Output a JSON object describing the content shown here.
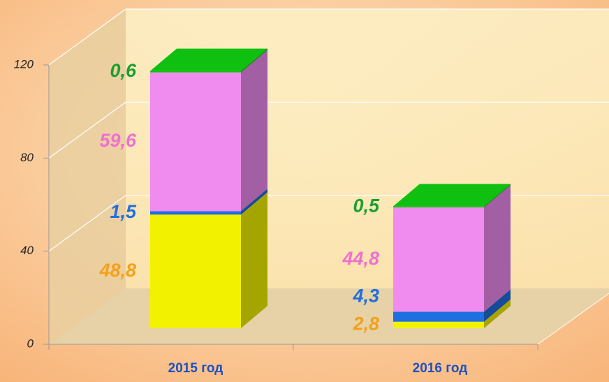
{
  "chart_data": {
    "type": "stacked-bar-3d",
    "categories": [
      "2015 год",
      "2016 год"
    ],
    "series": [
      {
        "color": "#f2f200",
        "label_color": "#f5a01a",
        "values": [
          48.8,
          2.8
        ],
        "value_labels": [
          "48,8",
          "2,8"
        ]
      },
      {
        "color": "#1f6fe0",
        "label_color": "#1f6fe0",
        "values": [
          1.5,
          4.3
        ],
        "value_labels": [
          "1,5",
          "4,3"
        ]
      },
      {
        "color": "#f08cf0",
        "label_color": "#f070d0",
        "values": [
          59.6,
          44.8
        ],
        "value_labels": [
          "59,6",
          "44,8"
        ]
      },
      {
        "color": "#10c010",
        "label_color": "#18a030",
        "values": [
          0.6,
          0.5
        ],
        "value_labels": [
          "0,6",
          "0,5"
        ]
      }
    ],
    "ylim": [
      0,
      120
    ],
    "yticks": [
      0,
      40,
      80,
      120
    ],
    "grid": true
  }
}
